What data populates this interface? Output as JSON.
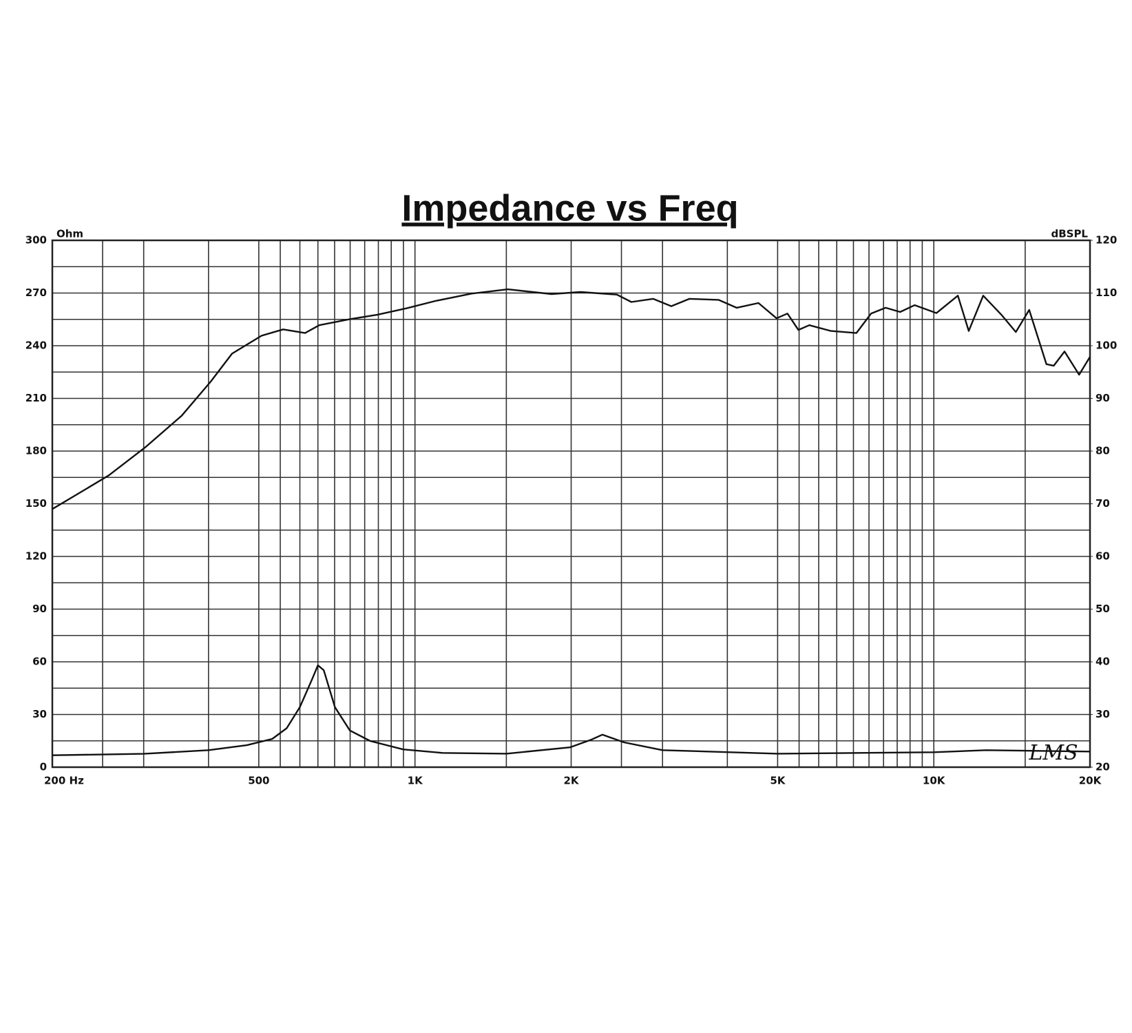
{
  "chart_data": {
    "type": "line",
    "title": "Impedance vs Freq",
    "y_label": "Ohm",
    "y2_label": "dBSPL",
    "logo": "LMS",
    "xscale": "log",
    "grid": true,
    "xlim": [
      200,
      20000
    ],
    "xticks": [
      {
        "value": 200,
        "label": "200  Hz"
      },
      {
        "value": 500,
        "label": "500"
      },
      {
        "value": 1000,
        "label": "1K"
      },
      {
        "value": 2000,
        "label": "2K"
      },
      {
        "value": 5000,
        "label": "5K"
      },
      {
        "value": 10000,
        "label": "10K"
      },
      {
        "value": 20000,
        "label": "20K"
      }
    ],
    "x_minor_grid": [
      250,
      300,
      400,
      550,
      600,
      650,
      700,
      750,
      800,
      850,
      900,
      950,
      1500,
      2500,
      3000,
      4000,
      5500,
      6000,
      6500,
      7000,
      7500,
      8000,
      8500,
      9000,
      9500,
      15000
    ],
    "ylim": [
      0,
      300
    ],
    "yticks": [
      0,
      30,
      60,
      90,
      120,
      150,
      180,
      210,
      240,
      270,
      300
    ],
    "y_minor_grid": [
      15,
      45,
      75,
      105,
      135,
      165,
      195,
      225,
      255,
      285
    ],
    "y2lim": [
      20,
      120
    ],
    "y2ticks": [
      20,
      30,
      40,
      50,
      60,
      70,
      80,
      90,
      100,
      110,
      120
    ],
    "series": [
      {
        "name": "SPL",
        "axis": "y2",
        "color": "#111111",
        "x": [
          200,
          226,
          257,
          302,
          355,
          404,
          444,
          506,
          557,
          614,
          654,
          745,
          847,
          963,
          1095,
          1286,
          1510,
          1833,
          2085,
          2450,
          2612,
          2877,
          3119,
          3381,
          3846,
          4168,
          4592,
          4977,
          5222,
          5483,
          5753,
          6335,
          7092,
          7570,
          8074,
          8612,
          9185,
          10117,
          11126,
          11678,
          12451,
          13494,
          14393,
          15270,
          16483,
          17023,
          17863,
          19058,
          20000
        ],
        "values": [
          69.0,
          72.1,
          75.4,
          80.7,
          86.7,
          93.2,
          98.5,
          101.9,
          103.1,
          102.4,
          103.9,
          105.0,
          105.9,
          107.1,
          108.5,
          109.9,
          110.7,
          109.8,
          110.2,
          109.7,
          108.3,
          108.9,
          107.5,
          108.9,
          108.7,
          107.2,
          108.1,
          105.2,
          106.1,
          103.0,
          103.9,
          102.8,
          102.4,
          106.1,
          107.2,
          106.4,
          107.7,
          106.2,
          109.5,
          102.8,
          109.5,
          105.9,
          102.6,
          106.8,
          96.5,
          96.2,
          98.9,
          94.5,
          97.9
        ]
      },
      {
        "name": "Impedance",
        "color": "#111111",
        "x": [
          200,
          300,
          400,
          474,
          531,
          566,
          600,
          634,
          650,
          667,
          701,
          749,
          820,
          949,
          1130,
          1500,
          1989,
          2188,
          2297,
          2530,
          3000,
          5000,
          10000,
          12619,
          20000
        ],
        "values": [
          6.8,
          7.6,
          9.7,
          12.5,
          16.1,
          22.2,
          34.2,
          50.3,
          58.0,
          55.2,
          34.2,
          20.9,
          14.9,
          10.1,
          8.1,
          7.7,
          11.3,
          15.7,
          18.5,
          14.1,
          9.7,
          7.7,
          8.5,
          9.7,
          8.9
        ]
      }
    ]
  }
}
